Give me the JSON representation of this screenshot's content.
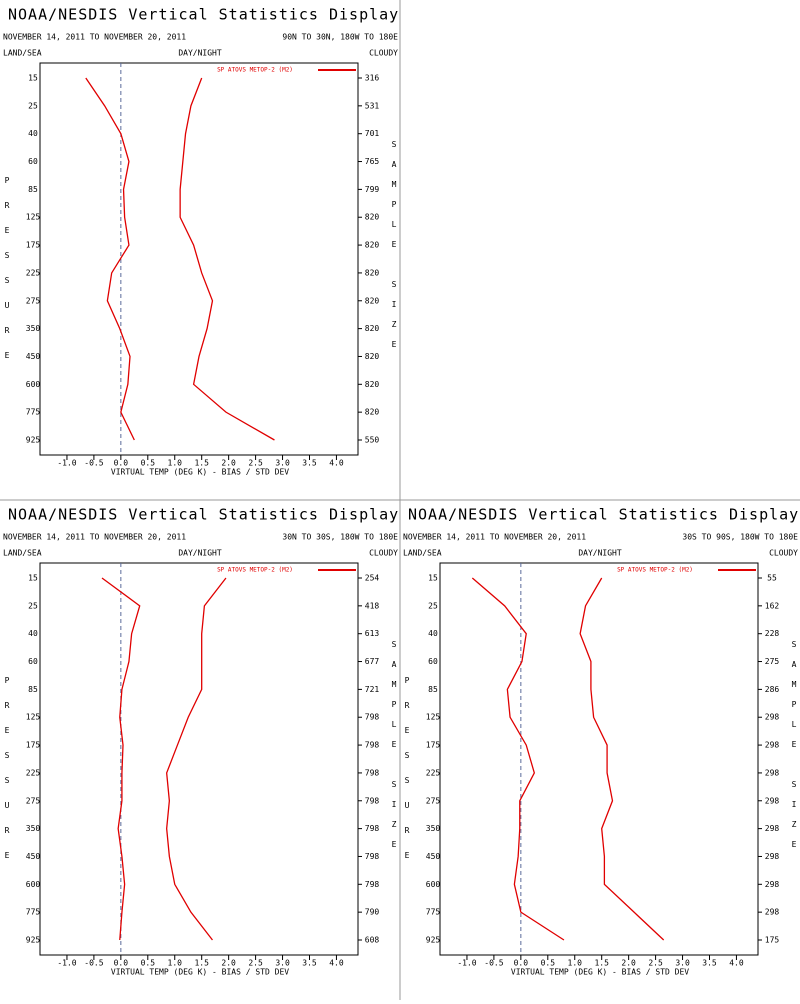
{
  "chart_data": [
    {
      "type": "line",
      "title": "NOAA/NESDIS Vertical Statistics Display",
      "subtitle": "NOVEMBER 14, 2011 TO NOVEMBER 20, 2011",
      "region": "90N TO 30N, 180W TO 180E",
      "land_sea": "LAND/SEA",
      "day_night": "DAY/NIGHT",
      "cloudy": "CLOUDY",
      "xlabel": "VIRTUAL TEMP (DEG K) - BIAS / STD DEV",
      "ylabel": "PRESSURE",
      "y2label": "SAMPLE SIZE",
      "categories": [
        "15",
        "25",
        "40",
        "60",
        "85",
        "125",
        "175",
        "225",
        "275",
        "350",
        "450",
        "600",
        "775",
        "925"
      ],
      "sample_size": [
        316,
        531,
        701,
        765,
        799,
        820,
        820,
        820,
        820,
        820,
        820,
        820,
        820,
        550
      ],
      "xlim": [
        -1.5,
        4.4
      ],
      "xticks": [
        {
          "value": -1,
          "label": "-1.0"
        },
        {
          "value": -0.5,
          "label": "-0.5"
        },
        {
          "value": 0,
          "label": "0.0"
        },
        {
          "value": 0.5,
          "label": "0.5"
        },
        {
          "value": 1,
          "label": "1.0"
        },
        {
          "value": 1.5,
          "label": "1.5"
        },
        {
          "value": 2,
          "label": "2.0"
        },
        {
          "value": 2.5,
          "label": "2.5"
        },
        {
          "value": 3,
          "label": "3.0"
        },
        {
          "value": 3.5,
          "label": "3.5"
        },
        {
          "value": 4,
          "label": "4.0"
        }
      ],
      "series": [
        {
          "name": "SP ATOVS METOP-2 (M2)",
          "color": "#e00000",
          "bias": [
            -0.65,
            -0.3,
            0.0,
            0.15,
            0.05,
            0.07,
            0.15,
            -0.17,
            -0.25,
            -0.02,
            0.17,
            0.13,
            0.0,
            0.25
          ],
          "std_dev": [
            1.5,
            1.3,
            1.2,
            1.15,
            1.1,
            1.1,
            1.35,
            1.5,
            1.7,
            1.6,
            1.45,
            1.35,
            1.95,
            2.85
          ]
        }
      ]
    },
    {
      "type": "line",
      "title": "NOAA/NESDIS Vertical Statistics Display",
      "subtitle": "NOVEMBER 14, 2011 TO NOVEMBER 20, 2011",
      "region": "30N TO 30S, 180W TO 180E",
      "land_sea": "LAND/SEA",
      "day_night": "DAY/NIGHT",
      "cloudy": "CLOUDY",
      "xlabel": "VIRTUAL TEMP (DEG K) - BIAS / STD DEV",
      "ylabel": "PRESSURE",
      "y2label": "SAMPLE SIZE",
      "categories": [
        "15",
        "25",
        "40",
        "60",
        "85",
        "125",
        "175",
        "225",
        "275",
        "350",
        "450",
        "600",
        "775",
        "925"
      ],
      "sample_size": [
        254,
        418,
        613,
        677,
        721,
        798,
        798,
        798,
        798,
        798,
        798,
        798,
        790,
        608
      ],
      "xlim": [
        -1.5,
        4.4
      ],
      "xticks": [
        {
          "value": -1,
          "label": "-1.0"
        },
        {
          "value": -0.5,
          "label": "-0.5"
        },
        {
          "value": 0,
          "label": "0.0"
        },
        {
          "value": 0.5,
          "label": "0.5"
        },
        {
          "value": 1,
          "label": "1.0"
        },
        {
          "value": 1.5,
          "label": "1.5"
        },
        {
          "value": 2,
          "label": "2.0"
        },
        {
          "value": 2.5,
          "label": "2.5"
        },
        {
          "value": 3,
          "label": "3.0"
        },
        {
          "value": 3.5,
          "label": "3.5"
        },
        {
          "value": 4,
          "label": "4.0"
        }
      ],
      "series": [
        {
          "name": "SP ATOVS METOP-2 (M2)",
          "color": "#e00000",
          "bias": [
            -0.35,
            0.35,
            0.2,
            0.15,
            0.02,
            -0.02,
            0.04,
            0.02,
            0.02,
            -0.05,
            0.02,
            0.07,
            0.02,
            -0.02
          ],
          "std_dev": [
            1.95,
            1.55,
            1.5,
            1.5,
            1.5,
            1.25,
            1.05,
            0.85,
            0.9,
            0.85,
            0.9,
            1.0,
            1.3,
            1.7
          ]
        }
      ]
    },
    {
      "type": "line",
      "title": "NOAA/NESDIS Vertical Statistics Display",
      "subtitle": "NOVEMBER 14, 2011 TO NOVEMBER 20, 2011",
      "region": "30S TO 90S, 180W TO 180E",
      "land_sea": "LAND/SEA",
      "day_night": "DAY/NIGHT",
      "cloudy": "CLOUDY",
      "xlabel": "VIRTUAL TEMP (DEG K) - BIAS / STD DEV",
      "ylabel": "PRESSURE",
      "y2label": "SAMPLE SIZE",
      "categories": [
        "15",
        "25",
        "40",
        "60",
        "85",
        "125",
        "175",
        "225",
        "275",
        "350",
        "450",
        "600",
        "775",
        "925"
      ],
      "sample_size": [
        55,
        162,
        228,
        275,
        286,
        298,
        298,
        298,
        298,
        298,
        298,
        298,
        298,
        175
      ],
      "xlim": [
        -1.5,
        4.4
      ],
      "xticks": [
        {
          "value": -1,
          "label": "-1.0"
        },
        {
          "value": -0.5,
          "label": "-0.5"
        },
        {
          "value": 0,
          "label": "0.0"
        },
        {
          "value": 0.5,
          "label": "0.5"
        },
        {
          "value": 1,
          "label": "1.0"
        },
        {
          "value": 1.5,
          "label": "1.5"
        },
        {
          "value": 2,
          "label": "2.0"
        },
        {
          "value": 2.5,
          "label": "2.5"
        },
        {
          "value": 3,
          "label": "3.0"
        },
        {
          "value": 3.5,
          "label": "3.5"
        },
        {
          "value": 4,
          "label": "4.0"
        }
      ],
      "series": [
        {
          "name": "SP ATOVS METOP-2 (M2)",
          "color": "#e00000",
          "bias": [
            -0.9,
            -0.3,
            0.1,
            0.02,
            -0.25,
            -0.2,
            0.1,
            0.25,
            -0.02,
            -0.02,
            -0.05,
            -0.12,
            0.0,
            0.8
          ],
          "std_dev": [
            1.5,
            1.2,
            1.1,
            1.3,
            1.3,
            1.35,
            1.6,
            1.6,
            1.7,
            1.5,
            1.55,
            1.55,
            2.1,
            2.65
          ]
        }
      ]
    }
  ]
}
